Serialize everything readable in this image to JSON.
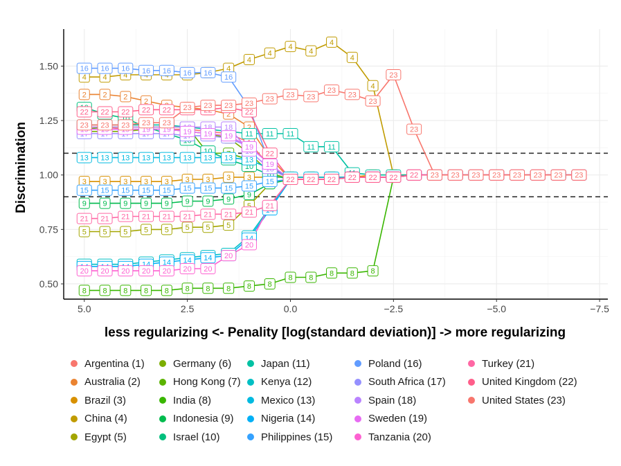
{
  "chart_data": {
    "type": "line",
    "title": "",
    "xlabel": "less regularizing <- Penality [log(standard deviation)] -> more regularizing",
    "ylabel": "Discrimination",
    "xlim": [
      5.5,
      -7.7
    ],
    "ylim": [
      0.43,
      1.67
    ],
    "x_reversed": true,
    "xticks": [
      5.0,
      2.5,
      0.0,
      -2.5,
      -5.0,
      -7.5
    ],
    "xtick_labels": [
      "5.0",
      "2.5",
      "0.0",
      "−2.5",
      "−5.0",
      "−7.5"
    ],
    "yticks": [
      0.5,
      0.75,
      1.0,
      1.25,
      1.5
    ],
    "ytick_labels": [
      "0.50",
      "0.75",
      "1.00",
      "1.25",
      "1.50"
    ],
    "reference_lines": [
      0.9,
      1.1
    ],
    "grid": true,
    "x": [
      5.0,
      4.5,
      4.0,
      3.5,
      3.0,
      2.5,
      2.0,
      1.5,
      1.0,
      0.5,
      0.0,
      -0.5,
      -1.0,
      -1.5,
      -2.0,
      -2.5,
      -3.0,
      -3.5,
      -4.0,
      -4.5,
      -5.0,
      -5.5,
      -6.0,
      -6.5,
      -7.0
    ],
    "series": [
      {
        "id": 1,
        "name": "Argentina (1)",
        "color": "#F8766D",
        "values": [
          1.22,
          1.22,
          1.21,
          1.21,
          1.21,
          1.21,
          1.2,
          1.19,
          1.15,
          1.04,
          0.98,
          0.98,
          0.98,
          0.99,
          0.99,
          0.99,
          1.0,
          1.0,
          1.0,
          1.0,
          1.0,
          1.0,
          1.0,
          1.0,
          1.0
        ]
      },
      {
        "id": 2,
        "name": "Australia (2)",
        "color": "#EA8331",
        "values": [
          1.37,
          1.37,
          1.36,
          1.34,
          1.32,
          1.31,
          1.3,
          1.28,
          1.22,
          1.08,
          0.98,
          0.98,
          0.98,
          0.99,
          0.99,
          0.99,
          1.0,
          1.0,
          1.0,
          1.0,
          1.0,
          1.0,
          1.0,
          1.0,
          1.0
        ]
      },
      {
        "id": 3,
        "name": "Brazil (3)",
        "color": "#D89000",
        "values": [
          0.97,
          0.97,
          0.97,
          0.97,
          0.97,
          0.98,
          0.98,
          0.99,
          0.99,
          0.99,
          0.99,
          0.99,
          0.99,
          0.99,
          1.0,
          1.0,
          1.0,
          1.0,
          1.0,
          1.0,
          1.0,
          1.0,
          1.0,
          1.0,
          1.0
        ]
      },
      {
        "id": 4,
        "name": "China (4)",
        "color": "#C09B00",
        "values": [
          1.45,
          1.45,
          1.46,
          1.46,
          1.46,
          1.46,
          1.47,
          1.49,
          1.53,
          1.56,
          1.59,
          1.57,
          1.61,
          1.54,
          1.41,
          1.0,
          1.0,
          1.0,
          1.0,
          1.0,
          1.0,
          1.0,
          1.0,
          1.0,
          1.0
        ]
      },
      {
        "id": 5,
        "name": "Egypt (5)",
        "color": "#A3A500",
        "values": [
          0.74,
          0.74,
          0.74,
          0.75,
          0.75,
          0.76,
          0.76,
          0.77,
          0.86,
          0.96,
          0.98,
          0.98,
          0.98,
          0.99,
          0.99,
          0.99,
          1.0,
          1.0,
          1.0,
          1.0,
          1.0,
          1.0,
          1.0,
          1.0,
          1.0
        ]
      },
      {
        "id": 6,
        "name": "Germany (6)",
        "color": "#7CAE00",
        "values": [
          1.2,
          1.2,
          1.2,
          1.21,
          1.21,
          1.2,
          1.19,
          1.17,
          1.1,
          1.01,
          0.98,
          0.98,
          0.98,
          0.99,
          0.99,
          0.99,
          1.0,
          1.0,
          1.0,
          1.0,
          1.0,
          1.0,
          1.0,
          1.0,
          1.0
        ]
      },
      {
        "id": 7,
        "name": "Hong Kong (7)",
        "color": "#5BB300",
        "values": [
          1.21,
          1.22,
          1.22,
          1.22,
          1.22,
          1.22,
          1.1,
          1.1,
          1.07,
          1.03,
          0.99,
          0.99,
          0.99,
          0.99,
          0.99,
          0.99,
          1.0,
          1.0,
          1.0,
          1.0,
          1.0,
          1.0,
          1.0,
          1.0,
          1.0
        ]
      },
      {
        "id": 8,
        "name": "India (8)",
        "color": "#39B600",
        "values": [
          0.47,
          0.47,
          0.47,
          0.47,
          0.47,
          0.48,
          0.48,
          0.48,
          0.49,
          0.5,
          0.53,
          0.53,
          0.55,
          0.55,
          0.56,
          0.99,
          1.0,
          1.0,
          1.0,
          1.0,
          1.0,
          1.0,
          1.0,
          1.0,
          1.0
        ]
      },
      {
        "id": 9,
        "name": "Indonesia (9)",
        "color": "#00BB4E",
        "values": [
          0.87,
          0.87,
          0.87,
          0.87,
          0.87,
          0.88,
          0.88,
          0.89,
          0.91,
          0.96,
          0.98,
          0.98,
          0.98,
          0.99,
          0.99,
          0.99,
          1.0,
          1.0,
          1.0,
          1.0,
          1.0,
          1.0,
          1.0,
          1.0,
          1.0
        ]
      },
      {
        "id": 10,
        "name": "Israel (10)",
        "color": "#00BF7D",
        "values": [
          1.31,
          1.28,
          1.26,
          1.22,
          1.19,
          1.16,
          1.11,
          1.07,
          1.04,
          1.0,
          0.98,
          0.98,
          0.98,
          0.99,
          0.99,
          0.99,
          1.0,
          1.0,
          1.0,
          1.0,
          1.0,
          1.0,
          1.0,
          1.0,
          1.0
        ]
      },
      {
        "id": 11,
        "name": "Japan (11)",
        "color": "#00C1A3",
        "values": [
          1.23,
          1.23,
          1.23,
          1.23,
          1.23,
          1.22,
          1.21,
          1.2,
          1.19,
          1.19,
          1.19,
          1.13,
          1.13,
          1.01,
          1.0,
          1.0,
          1.0,
          1.0,
          1.0,
          1.0,
          1.0,
          1.0,
          1.0,
          1.0,
          1.0
        ]
      },
      {
        "id": 12,
        "name": "Kenya (12)",
        "color": "#00BFC4",
        "values": [
          0.59,
          0.59,
          0.59,
          0.6,
          0.61,
          0.62,
          0.63,
          0.64,
          0.72,
          0.85,
          0.98,
          0.98,
          0.98,
          0.99,
          0.99,
          0.99,
          1.0,
          1.0,
          1.0,
          1.0,
          1.0,
          1.0,
          1.0,
          1.0,
          1.0
        ]
      },
      {
        "id": 13,
        "name": "Mexico (13)",
        "color": "#00BAE0",
        "values": [
          1.08,
          1.08,
          1.08,
          1.08,
          1.08,
          1.08,
          1.08,
          1.08,
          1.07,
          1.03,
          0.99,
          0.99,
          0.99,
          0.99,
          0.99,
          0.99,
          1.0,
          1.0,
          1.0,
          1.0,
          1.0,
          1.0,
          1.0,
          1.0,
          1.0
        ]
      },
      {
        "id": 14,
        "name": "Nigeria (14)",
        "color": "#00B0F6",
        "values": [
          0.58,
          0.58,
          0.58,
          0.59,
          0.6,
          0.61,
          0.62,
          0.63,
          0.71,
          0.84,
          0.98,
          0.98,
          0.98,
          0.99,
          0.99,
          0.99,
          1.0,
          1.0,
          1.0,
          1.0,
          1.0,
          1.0,
          1.0,
          1.0,
          1.0
        ]
      },
      {
        "id": 15,
        "name": "Philippines (15)",
        "color": "#35A2FF",
        "values": [
          0.93,
          0.93,
          0.93,
          0.93,
          0.93,
          0.94,
          0.94,
          0.94,
          0.95,
          0.97,
          0.98,
          0.98,
          0.98,
          0.99,
          0.99,
          0.99,
          1.0,
          1.0,
          1.0,
          1.0,
          1.0,
          1.0,
          1.0,
          1.0,
          1.0
        ]
      },
      {
        "id": 16,
        "name": "Poland (16)",
        "color": "#619CFF",
        "values": [
          1.49,
          1.49,
          1.49,
          1.48,
          1.48,
          1.47,
          1.47,
          1.45,
          1.31,
          1.05,
          0.98,
          0.98,
          0.98,
          0.99,
          0.99,
          0.99,
          1.0,
          1.0,
          1.0,
          1.0,
          1.0,
          1.0,
          1.0,
          1.0,
          1.0
        ]
      },
      {
        "id": 17,
        "name": "South Africa (17)",
        "color": "#9590FF",
        "values": [
          1.19,
          1.19,
          1.19,
          1.19,
          1.19,
          1.18,
          1.18,
          1.17,
          1.13,
          1.05,
          0.98,
          0.98,
          0.98,
          0.99,
          0.99,
          0.99,
          1.0,
          1.0,
          1.0,
          1.0,
          1.0,
          1.0,
          1.0,
          1.0,
          1.0
        ]
      },
      {
        "id": 18,
        "name": "Spain (18)",
        "color": "#B983FF",
        "values": [
          1.22,
          1.22,
          1.22,
          1.22,
          1.22,
          1.22,
          1.22,
          1.22,
          1.11,
          1.03,
          0.98,
          0.98,
          0.98,
          0.99,
          0.99,
          0.99,
          1.0,
          1.0,
          1.0,
          1.0,
          1.0,
          1.0,
          1.0,
          1.0,
          1.0
        ]
      },
      {
        "id": 19,
        "name": "Sweden (19)",
        "color": "#E76BF3",
        "values": [
          1.21,
          1.21,
          1.21,
          1.21,
          1.21,
          1.2,
          1.19,
          1.18,
          1.13,
          1.05,
          0.98,
          0.98,
          0.98,
          0.99,
          0.99,
          0.99,
          1.0,
          1.0,
          1.0,
          1.0,
          1.0,
          1.0,
          1.0,
          1.0,
          1.0
        ]
      },
      {
        "id": 20,
        "name": "Tanzania (20)",
        "color": "#FD61D1",
        "values": [
          0.56,
          0.56,
          0.56,
          0.56,
          0.56,
          0.57,
          0.57,
          0.63,
          0.68,
          0.86,
          0.98,
          0.98,
          0.98,
          0.99,
          0.99,
          0.99,
          1.0,
          1.0,
          1.0,
          1.0,
          1.0,
          1.0,
          1.0,
          1.0,
          1.0
        ]
      },
      {
        "id": 21,
        "name": "Turkey (21)",
        "color": "#FF67A4",
        "values": [
          0.8,
          0.8,
          0.81,
          0.81,
          0.81,
          0.81,
          0.82,
          0.82,
          0.83,
          0.86,
          0.98,
          0.98,
          0.98,
          0.99,
          0.99,
          0.99,
          1.0,
          1.0,
          1.0,
          1.0,
          1.0,
          1.0,
          1.0,
          1.0,
          1.0
        ]
      },
      {
        "id": 22,
        "name": "United Kingdom (22)",
        "color": "#FF5E8A",
        "values": [
          1.29,
          1.29,
          1.29,
          1.3,
          1.3,
          1.3,
          1.3,
          1.31,
          1.29,
          1.1,
          0.98,
          0.98,
          0.98,
          0.99,
          0.99,
          0.99,
          1.0,
          1.0,
          1.0,
          1.0,
          1.0,
          1.0,
          1.0,
          1.0,
          1.0
        ]
      },
      {
        "id": 23,
        "name": "United States (23)",
        "color": "#F8766D",
        "values": [
          1.23,
          1.23,
          1.23,
          1.24,
          1.24,
          1.31,
          1.32,
          1.32,
          1.33,
          1.35,
          1.37,
          1.36,
          1.39,
          1.37,
          1.34,
          1.46,
          1.21,
          1.0,
          1.0,
          1.0,
          1.0,
          1.0,
          1.0,
          1.0,
          1.0
        ]
      }
    ]
  }
}
